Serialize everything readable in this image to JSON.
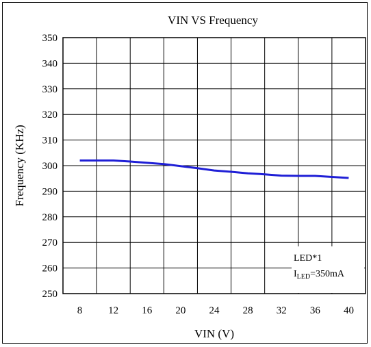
{
  "chart_data": {
    "type": "line",
    "title": "VIN VS Frequency",
    "xlabel": "VIN (V)",
    "ylabel": "Frequency (KHz)",
    "xlim": [
      6,
      42
    ],
    "ylim": [
      250,
      350
    ],
    "xticks": [
      8,
      12,
      16,
      20,
      24,
      28,
      32,
      36,
      40
    ],
    "yticks": [
      250,
      260,
      270,
      280,
      290,
      300,
      310,
      320,
      330,
      340,
      350
    ],
    "grid": true,
    "series": [
      {
        "color": "#1f1fd6",
        "x": [
          8,
          10,
          12,
          14,
          16,
          18,
          20,
          22,
          24,
          26,
          28,
          30,
          32,
          34,
          36,
          38,
          40
        ],
        "y": [
          302,
          302,
          302,
          301.6,
          301.1,
          300.6,
          299.8,
          299.0,
          298.1,
          297.6,
          297.0,
          296.6,
          296.1,
          296.0,
          296.0,
          295.6,
          295.2
        ]
      }
    ],
    "annotation": {
      "line1": "LED*1",
      "line2_main": "I",
      "line2_sub": "LED",
      "line2_rest": "=350mA"
    }
  }
}
